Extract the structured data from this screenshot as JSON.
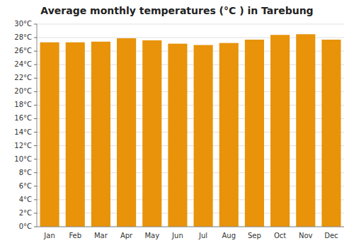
{
  "chart_data": {
    "type": "bar",
    "title": "Average monthly temperatures (°C ) in Tarebung",
    "categories": [
      "Jan",
      "Feb",
      "Mar",
      "Apr",
      "May",
      "Jun",
      "Jul",
      "Aug",
      "Sep",
      "Oct",
      "Nov",
      "Dec"
    ],
    "values": [
      27.3,
      27.3,
      27.4,
      27.9,
      27.6,
      27.1,
      26.9,
      27.2,
      27.7,
      28.4,
      28.5,
      27.7
    ],
    "color": "#E8930A",
    "ylim": [
      0,
      30
    ],
    "yticks": [
      {
        "value": 0,
        "label": "0°C"
      },
      {
        "value": 2,
        "label": "2°C"
      },
      {
        "value": 4,
        "label": "4°C"
      },
      {
        "value": 6,
        "label": "6°C"
      },
      {
        "value": 8,
        "label": "8°C"
      },
      {
        "value": 10,
        "label": "10°C"
      },
      {
        "value": 12,
        "label": "12°C"
      },
      {
        "value": 14,
        "label": "14°C"
      },
      {
        "value": 16,
        "label": "16°C"
      },
      {
        "value": 18,
        "label": "18°C"
      },
      {
        "value": 20,
        "label": "20°C"
      },
      {
        "value": 22,
        "label": "22°C"
      },
      {
        "value": 24,
        "label": "24°C"
      },
      {
        "value": 26,
        "label": "26°C"
      },
      {
        "value": 28,
        "label": "28°C"
      },
      {
        "value": 30,
        "label": "30°C"
      }
    ],
    "grid": true
  }
}
